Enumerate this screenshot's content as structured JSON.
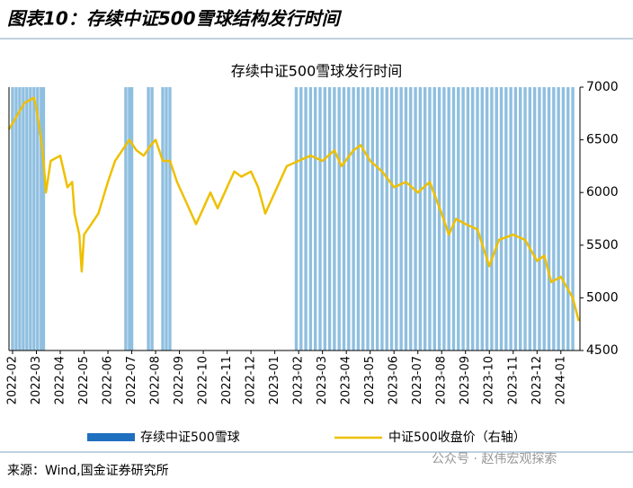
{
  "header": {
    "title": "图表10：存续中证500雪球结构发行时间"
  },
  "chart_data": {
    "type": "line",
    "title": "存续中证500雪球发行时间",
    "xlim": [
      -0.15,
      23.8
    ],
    "xticks": [
      {
        "value": 0,
        "label": "2022-02"
      },
      {
        "value": 1,
        "label": "2022-03"
      },
      {
        "value": 2,
        "label": "2022-04"
      },
      {
        "value": 3,
        "label": "2022-05"
      },
      {
        "value": 4,
        "label": "2022-06"
      },
      {
        "value": 5,
        "label": "2022-07"
      },
      {
        "value": 6,
        "label": "2022-08"
      },
      {
        "value": 7,
        "label": "2022-09"
      },
      {
        "value": 8,
        "label": "2022-10"
      },
      {
        "value": 9,
        "label": "2022-11"
      },
      {
        "value": 10,
        "label": "2022-12"
      },
      {
        "value": 11,
        "label": "2023-01"
      },
      {
        "value": 12,
        "label": "2023-02"
      },
      {
        "value": 13,
        "label": "2023-03"
      },
      {
        "value": 14,
        "label": "2023-04"
      },
      {
        "value": 15,
        "label": "2023-05"
      },
      {
        "value": 16,
        "label": "2023-06"
      },
      {
        "value": 17,
        "label": "2023-07"
      },
      {
        "value": 18,
        "label": "2023-08"
      },
      {
        "value": 19,
        "label": "2023-09"
      },
      {
        "value": 20,
        "label": "2023-10"
      },
      {
        "value": 21,
        "label": "2023-11"
      },
      {
        "value": 22,
        "label": "2023-12"
      },
      {
        "value": 23,
        "label": "2024-01"
      }
    ],
    "ylim": [
      0,
      1
    ],
    "y2lim": [
      4500,
      7000
    ],
    "y2ticks": [
      4500,
      5000,
      5500,
      6000,
      6500,
      7000
    ],
    "series": [
      {
        "name": "存续中证500雪球",
        "color": "#8fbfe0",
        "legend_color": "#1f6fbf",
        "x": [
          0,
          0.15,
          0.3,
          0.45,
          0.6,
          0.75,
          0.9,
          1.05,
          1.2,
          1.3,
          4.75,
          4.9,
          5.0,
          5.7,
          5.85,
          6.3,
          6.45,
          6.6,
          11.9,
          12.1,
          12.3,
          12.5,
          12.7,
          12.9,
          13.1,
          13.3,
          13.5,
          13.7,
          13.9,
          14.1,
          14.3,
          14.5,
          14.7,
          14.9,
          15.1,
          15.3,
          15.5,
          15.7,
          15.9,
          16.1,
          16.3,
          16.5,
          16.7,
          16.9,
          17.1,
          17.3,
          17.5,
          17.7,
          17.9,
          18.1,
          18.3,
          18.5,
          18.7,
          18.9,
          19.1,
          19.3,
          19.5,
          19.7,
          19.9,
          20.1,
          20.3,
          20.5,
          20.7,
          20.9,
          21.1,
          21.3,
          21.5,
          21.7,
          21.9,
          22.1,
          22.3,
          22.5,
          22.7,
          22.9,
          23.1,
          23.3,
          23.5
        ],
        "values": [
          1,
          1,
          1,
          1,
          1,
          1,
          1,
          1,
          1,
          1,
          1,
          1,
          1,
          1,
          1,
          1,
          1,
          1,
          1,
          1,
          1,
          1,
          1,
          1,
          1,
          1,
          1,
          1,
          1,
          1,
          1,
          1,
          1,
          1,
          1,
          1,
          1,
          1,
          1,
          1,
          1,
          1,
          1,
          1,
          1,
          1,
          1,
          1,
          1,
          1,
          1,
          1,
          1,
          1,
          1,
          1,
          1,
          1,
          1,
          1,
          1,
          1,
          1,
          1,
          1,
          1,
          1,
          1,
          1,
          1,
          1,
          1,
          1,
          1,
          1,
          1,
          1
        ]
      },
      {
        "name": "中证500收盘价（右轴）",
        "color": "#eec000",
        "axis": "y2",
        "x": [
          -0.15,
          0.5,
          0.9,
          1.0,
          1.2,
          1.3,
          1.4,
          1.6,
          2.0,
          2.3,
          2.5,
          2.6,
          2.8,
          2.9,
          3.0,
          3.3,
          3.6,
          3.8,
          4.0,
          4.3,
          4.6,
          4.9,
          5.2,
          5.5,
          5.8,
          6.0,
          6.3,
          6.6,
          6.9,
          7.3,
          7.7,
          8.0,
          8.3,
          8.6,
          9.0,
          9.3,
          9.6,
          10.0,
          10.3,
          10.6,
          11.0,
          11.5,
          12.0,
          12.5,
          13.0,
          13.5,
          13.8,
          14.3,
          14.6,
          15.0,
          15.5,
          16.0,
          16.5,
          17.0,
          17.5,
          18.0,
          18.3,
          18.6,
          19.0,
          19.5,
          20.0,
          20.4,
          21.0,
          21.5,
          22.0,
          22.3,
          22.6,
          23.0,
          23.5,
          23.75
        ],
        "values": [
          6600,
          6850,
          6900,
          6800,
          6500,
          6300,
          6000,
          6300,
          6350,
          6050,
          6100,
          5800,
          5600,
          5250,
          5600,
          5700,
          5800,
          5950,
          6100,
          6300,
          6400,
          6500,
          6400,
          6350,
          6450,
          6500,
          6300,
          6300,
          6100,
          5900,
          5700,
          5850,
          6000,
          5850,
          6050,
          6200,
          6150,
          6200,
          6050,
          5800,
          6000,
          6250,
          6300,
          6350,
          6300,
          6400,
          6250,
          6400,
          6450,
          6300,
          6200,
          6050,
          6100,
          6000,
          6100,
          5800,
          5600,
          5750,
          5700,
          5650,
          5300,
          5550,
          5600,
          5550,
          5350,
          5400,
          5150,
          5200,
          5000,
          4780
        ]
      }
    ]
  },
  "footer": {
    "source": "来源：Wind,国金证券研究所",
    "watermark": "公众号 · 赵伟宏观探索"
  }
}
